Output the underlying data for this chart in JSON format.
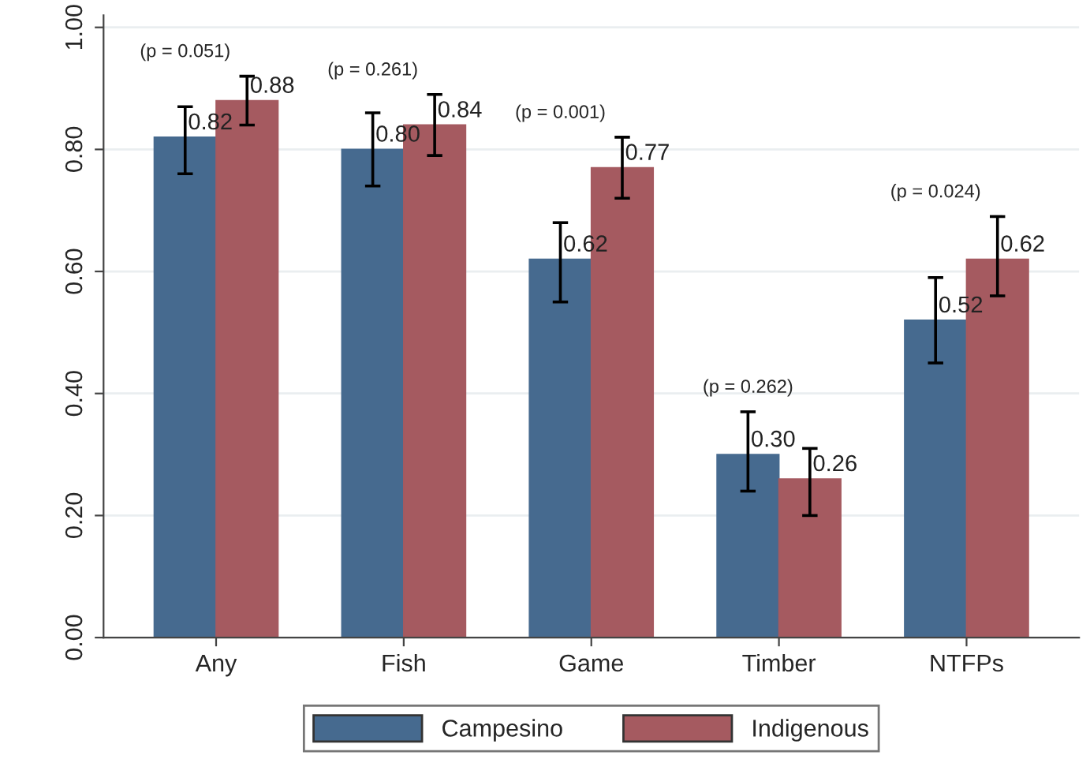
{
  "chart_data": {
    "type": "bar",
    "categories": [
      "Any",
      "Fish",
      "Game",
      "Timber",
      "NTFPs"
    ],
    "series": [
      {
        "name": "Campesino",
        "color": "#466a8f",
        "values": [
          0.82,
          0.8,
          0.62,
          0.3,
          0.52
        ],
        "value_labels": [
          "0.82",
          "0.80",
          "0.62",
          "0.30",
          "0.52"
        ],
        "errors": [
          [
            0.76,
            0.87
          ],
          [
            0.74,
            0.86
          ],
          [
            0.55,
            0.68
          ],
          [
            0.24,
            0.37
          ],
          [
            0.45,
            0.59
          ]
        ]
      },
      {
        "name": "Indigenous",
        "color": "#a55a60",
        "values": [
          0.88,
          0.84,
          0.77,
          0.26,
          0.62
        ],
        "value_labels": [
          "0.88",
          "0.84",
          "0.77",
          "0.26",
          "0.62"
        ],
        "errors": [
          [
            0.84,
            0.92
          ],
          [
            0.79,
            0.89
          ],
          [
            0.72,
            0.82
          ],
          [
            0.2,
            0.31
          ],
          [
            0.56,
            0.69
          ]
        ]
      }
    ],
    "ylim": [
      0,
      1.02
    ],
    "yticks": [
      {
        "value": 0,
        "label": "0.00"
      },
      {
        "value": 0.2,
        "label": "0.20"
      },
      {
        "value": 0.4,
        "label": "0.40"
      },
      {
        "value": 0.6,
        "label": "0.60"
      },
      {
        "value": 0.8,
        "label": "0.80"
      },
      {
        "value": 1.0,
        "label": "1.00"
      }
    ],
    "annotations": [
      "(p = 0.051)",
      "(p = 0.261)",
      "(p = 0.001)",
      "(p = 0.262)",
      "(p = 0.024)"
    ],
    "grid": "y",
    "legend": "bottom"
  }
}
